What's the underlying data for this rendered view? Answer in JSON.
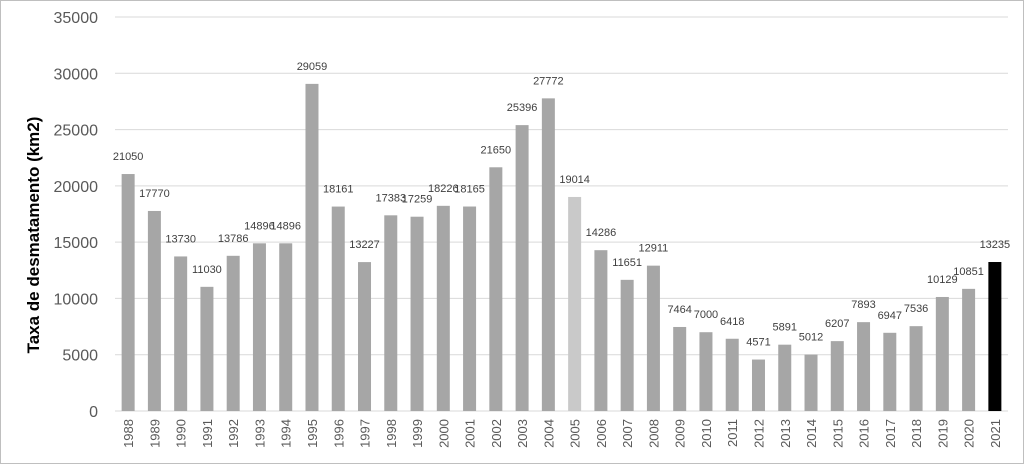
{
  "chart_data": {
    "type": "bar",
    "title": "",
    "xlabel": "",
    "ylabel": "Taxa de desmatamento (km2)",
    "ylim": [
      0,
      35000
    ],
    "yticks": [
      0,
      5000,
      10000,
      15000,
      20000,
      25000,
      30000,
      35000
    ],
    "grid": true,
    "legend": "none",
    "categories": [
      "1988",
      "1989",
      "1990",
      "1991",
      "1992",
      "1993",
      "1994",
      "1995",
      "1996",
      "1997",
      "1998",
      "1999",
      "2000",
      "2001",
      "2002",
      "2003",
      "2004",
      "2005",
      "2006",
      "2007",
      "2008",
      "2009",
      "2010",
      "2011",
      "2012",
      "2013",
      "2014",
      "2015",
      "2016",
      "2017",
      "2018",
      "2019",
      "2020",
      "2021"
    ],
    "values": [
      21050,
      17770,
      13730,
      11030,
      13786,
      14896,
      14896,
      29059,
      18161,
      13227,
      17383,
      17259,
      18226,
      18165,
      21650,
      25396,
      27772,
      19014,
      14286,
      11651,
      12911,
      7464,
      7000,
      6418,
      4571,
      5891,
      5012,
      6207,
      7893,
      6947,
      7536,
      10129,
      10851,
      13235
    ],
    "colors": {
      "default": "#a6a6a6",
      "2005": "#c9c9c9",
      "2021": "#000000"
    }
  }
}
